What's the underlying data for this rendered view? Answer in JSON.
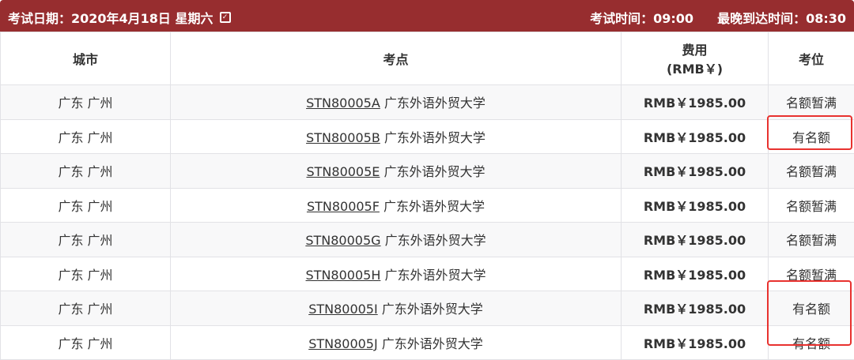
{
  "header": {
    "exam_date": "考试日期：2020年4月18日 星期六",
    "exam_time": "考试时间：09:00",
    "latest_arrival": "最晚到达时间：08:30",
    "accent_color": "#972d2f"
  },
  "table": {
    "columns": [
      "城市",
      "考点",
      "费用",
      "(RMB￥)",
      "考位"
    ],
    "rows": [
      {
        "city": "广东 广州",
        "code": "STN80005A",
        "venue": "广东外语外贸大学",
        "fee": "RMB￥1985.00",
        "status": "名额暂满"
      },
      {
        "city": "广东 广州",
        "code": "STN80005B",
        "venue": "广东外语外贸大学",
        "fee": "RMB￥1985.00",
        "status": "有名额"
      },
      {
        "city": "广东 广州",
        "code": "STN80005E",
        "venue": "广东外语外贸大学",
        "fee": "RMB￥1985.00",
        "status": "名额暂满"
      },
      {
        "city": "广东 广州",
        "code": "STN80005F",
        "venue": "广东外语外贸大学",
        "fee": "RMB￥1985.00",
        "status": "名额暂满"
      },
      {
        "city": "广东 广州",
        "code": "STN80005G",
        "venue": "广东外语外贸大学",
        "fee": "RMB￥1985.00",
        "status": "名额暂满"
      },
      {
        "city": "广东 广州",
        "code": "STN80005H",
        "venue": "广东外语外贸大学",
        "fee": "RMB￥1985.00",
        "status": "名额暂满"
      },
      {
        "city": "广东 广州",
        "code": "STN80005I",
        "venue": "广东外语外贸大学",
        "fee": "RMB￥1985.00",
        "status": "有名额"
      },
      {
        "city": "广东 广州",
        "code": "STN80005J",
        "venue": "广东外语外贸大学",
        "fee": "RMB￥1985.00",
        "status": "有名额"
      }
    ]
  },
  "highlight_color": "#e8322f"
}
